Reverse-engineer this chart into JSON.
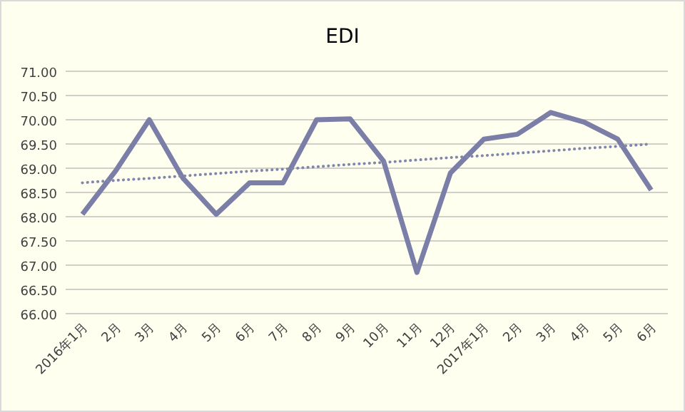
{
  "chart_data": {
    "type": "line",
    "title": "EDI",
    "categories": [
      "2016年1月",
      "2月",
      "3月",
      "4月",
      "5月",
      "6月",
      "7月",
      "8月",
      "9月",
      "10月",
      "11月",
      "12月",
      "2017年1月",
      "2月",
      "3月",
      "4月",
      "5月",
      "6月"
    ],
    "ylim": [
      66,
      71
    ],
    "yticks": [
      {
        "value": 66,
        "label": "66.00"
      },
      {
        "value": 66.5,
        "label": "66.50"
      },
      {
        "value": 67,
        "label": "67.00"
      },
      {
        "value": 67.5,
        "label": "67.50"
      },
      {
        "value": 68,
        "label": "68.00"
      },
      {
        "value": 68.5,
        "label": "68.50"
      },
      {
        "value": 69,
        "label": "69.00"
      },
      {
        "value": 69.5,
        "label": "69.50"
      },
      {
        "value": 70,
        "label": "70.00"
      },
      {
        "value": 70.5,
        "label": "70.50"
      },
      {
        "value": 71,
        "label": "71.00"
      }
    ],
    "grid": "y",
    "marker": "none",
    "series": [
      {
        "color": "#7b7fa8",
        "line_style": "solid",
        "values": [
          68.05,
          68.95,
          70.0,
          68.8,
          68.05,
          68.7,
          68.7,
          70.0,
          70.02,
          69.15,
          66.85,
          68.9,
          69.6,
          69.7,
          70.15,
          69.95,
          69.6,
          68.55
        ]
      },
      {
        "color": "#8286ad",
        "line_style": "dotted",
        "values": [
          68.7,
          68.75,
          68.79,
          68.84,
          68.89,
          68.94,
          68.98,
          69.03,
          69.08,
          69.12,
          69.17,
          69.22,
          69.26,
          69.31,
          69.36,
          69.41,
          69.45,
          69.5
        ]
      }
    ]
  }
}
